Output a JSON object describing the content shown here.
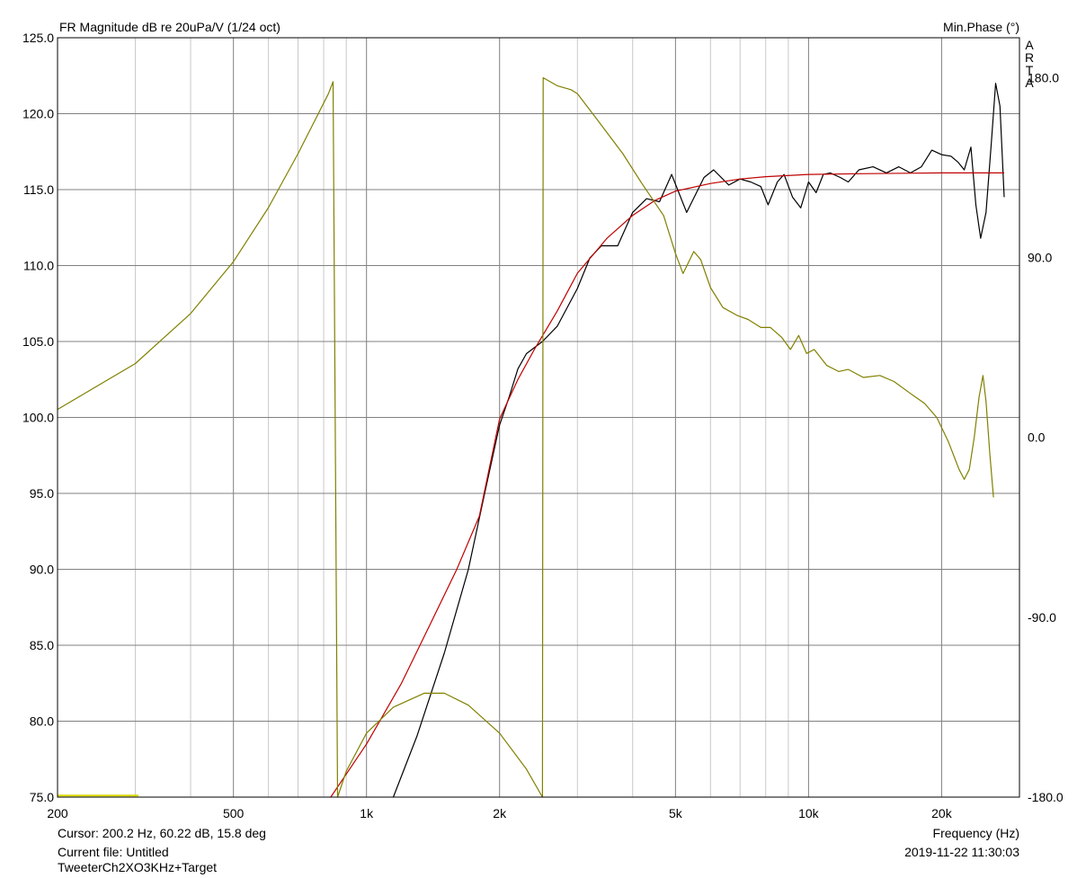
{
  "header": {
    "title": "FR Magnitude dB re 20uPa/V (1/24 oct)",
    "right_title": "Min.Phase (°)",
    "watermark": "ARTA"
  },
  "footer": {
    "cursor": "Cursor: 200.2 Hz, 60.22 dB, 15.8 deg",
    "current_file": "Current file: Untitled",
    "curve_name": "TweeterCh2XO3KHz+Target",
    "x_axis_label": "Frequency (Hz)",
    "timestamp": "2019-11-22  11:30:03"
  },
  "chart_data": {
    "type": "line",
    "x_scale": "log",
    "xlim": [
      200,
      30000
    ],
    "ylim": [
      75,
      125
    ],
    "y2lim": [
      -180,
      200
    ],
    "grid": true,
    "x_ticks": [
      200,
      500,
      1000,
      2000,
      5000,
      10000,
      20000
    ],
    "x_tick_labels": [
      "200",
      "500",
      "1k",
      "2k",
      "5k",
      "10k",
      "20k"
    ],
    "y_ticks": [
      75,
      80,
      85,
      90,
      95,
      100,
      105,
      110,
      115,
      120,
      125
    ],
    "y_tick_labels": [
      "75.0",
      "80.0",
      "85.0",
      "90.0",
      "95.0",
      "100.0",
      "105.0",
      "110.0",
      "115.0",
      "120.0",
      "125.0"
    ],
    "y2_ticks": [
      -180,
      -90,
      0,
      90,
      180
    ],
    "y2_tick_labels": [
      "-180.0",
      "-90.0",
      "0.0",
      "90.0",
      "180.0"
    ],
    "colors": {
      "magnitude": "#000000",
      "target": "#c00000",
      "phase": "#808000",
      "marker": "#d8d800"
    },
    "series": [
      {
        "axis": "left",
        "color": "#000000",
        "points": [
          [
            1150,
            75
          ],
          [
            1300,
            79
          ],
          [
            1500,
            84.5
          ],
          [
            1700,
            90
          ],
          [
            1850,
            95
          ],
          [
            2000,
            99.5
          ],
          [
            2100,
            101.3
          ],
          [
            2200,
            103.2
          ],
          [
            2300,
            104.2
          ],
          [
            2500,
            105
          ],
          [
            2700,
            106
          ],
          [
            3000,
            108.5
          ],
          [
            3200,
            110.5
          ],
          [
            3400,
            111.3
          ],
          [
            3700,
            111.3
          ],
          [
            4000,
            113.5
          ],
          [
            4300,
            114.4
          ],
          [
            4600,
            114.2
          ],
          [
            4900,
            116
          ],
          [
            5300,
            113.5
          ],
          [
            5800,
            115.8
          ],
          [
            6100,
            116.3
          ],
          [
            6600,
            115.3
          ],
          [
            7000,
            115.7
          ],
          [
            7400,
            115.5
          ],
          [
            7800,
            115.2
          ],
          [
            8100,
            114
          ],
          [
            8500,
            115.5
          ],
          [
            8800,
            116
          ],
          [
            9200,
            114.5
          ],
          [
            9600,
            113.8
          ],
          [
            10000,
            115.5
          ],
          [
            10400,
            114.8
          ],
          [
            10800,
            116
          ],
          [
            11200,
            116.1
          ],
          [
            11800,
            115.8
          ],
          [
            12300,
            115.5
          ],
          [
            13000,
            116.3
          ],
          [
            14000,
            116.5
          ],
          [
            15000,
            116.1
          ],
          [
            16000,
            116.5
          ],
          [
            17000,
            116.1
          ],
          [
            18000,
            116.5
          ],
          [
            19000,
            117.6
          ],
          [
            20000,
            117.3
          ],
          [
            21000,
            117.2
          ],
          [
            21800,
            116.8
          ],
          [
            22500,
            116.3
          ],
          [
            23300,
            117.8
          ],
          [
            23900,
            114
          ],
          [
            24500,
            111.8
          ],
          [
            25200,
            113.5
          ],
          [
            25900,
            118
          ],
          [
            26500,
            122
          ],
          [
            27100,
            120.5
          ],
          [
            27700,
            114.5
          ]
        ]
      },
      {
        "axis": "left",
        "color": "#c00000",
        "points": [
          [
            830,
            75
          ],
          [
            1000,
            78.5
          ],
          [
            1200,
            82.5
          ],
          [
            1400,
            86.5
          ],
          [
            1600,
            90
          ],
          [
            1800,
            93.5
          ],
          [
            2000,
            99.9
          ],
          [
            2200,
            102.5
          ],
          [
            2400,
            104.5
          ],
          [
            2700,
            107
          ],
          [
            3000,
            109.5
          ],
          [
            3500,
            111.8
          ],
          [
            4000,
            113.3
          ],
          [
            4500,
            114.3
          ],
          [
            5000,
            114.9
          ],
          [
            6000,
            115.4
          ],
          [
            7000,
            115.7
          ],
          [
            8000,
            115.85
          ],
          [
            10000,
            116
          ],
          [
            13000,
            116.05
          ],
          [
            20000,
            116.1
          ],
          [
            27700,
            116.1
          ]
        ]
      },
      {
        "axis": "right",
        "color": "#808000",
        "points": [
          [
            200,
            14
          ],
          [
            300,
            37
          ],
          [
            400,
            62
          ],
          [
            500,
            88
          ],
          [
            600,
            115
          ],
          [
            700,
            142
          ],
          [
            820,
            172
          ],
          [
            840,
            178
          ],
          [
            860,
            -180
          ],
          [
            900,
            -167
          ],
          [
            1000,
            -148
          ],
          [
            1150,
            -135
          ],
          [
            1350,
            -128
          ],
          [
            1500,
            -128
          ],
          [
            1700,
            -134
          ],
          [
            2000,
            -148
          ],
          [
            2300,
            -166
          ],
          [
            2500,
            -180
          ],
          [
            2510,
            180
          ],
          [
            2700,
            176
          ],
          [
            2900,
            174
          ],
          [
            3000,
            172
          ],
          [
            3300,
            160
          ],
          [
            3800,
            142
          ],
          [
            4200,
            127
          ],
          [
            4700,
            111
          ],
          [
            5000,
            92
          ],
          [
            5200,
            82
          ],
          [
            5500,
            93
          ],
          [
            5700,
            89
          ],
          [
            6000,
            75
          ],
          [
            6400,
            65
          ],
          [
            6900,
            61
          ],
          [
            7300,
            59
          ],
          [
            7800,
            55
          ],
          [
            8200,
            55
          ],
          [
            8700,
            50
          ],
          [
            9100,
            44
          ],
          [
            9500,
            51
          ],
          [
            9900,
            42
          ],
          [
            10300,
            44
          ],
          [
            11000,
            36
          ],
          [
            11700,
            33
          ],
          [
            12300,
            34
          ],
          [
            13300,
            30
          ],
          [
            14500,
            31
          ],
          [
            15600,
            28
          ],
          [
            17000,
            22
          ],
          [
            18300,
            17
          ],
          [
            19500,
            10
          ],
          [
            20700,
            -2
          ],
          [
            21900,
            -16
          ],
          [
            22500,
            -21
          ],
          [
            23100,
            -16
          ],
          [
            23700,
            0
          ],
          [
            24300,
            20
          ],
          [
            24800,
            31
          ],
          [
            25200,
            18
          ],
          [
            25700,
            -8
          ],
          [
            26200,
            -30
          ]
        ]
      },
      {
        "axis": "left",
        "color": "#d8d800",
        "points": [
          [
            200,
            75.1
          ],
          [
            305,
            75.1
          ]
        ]
      }
    ]
  }
}
